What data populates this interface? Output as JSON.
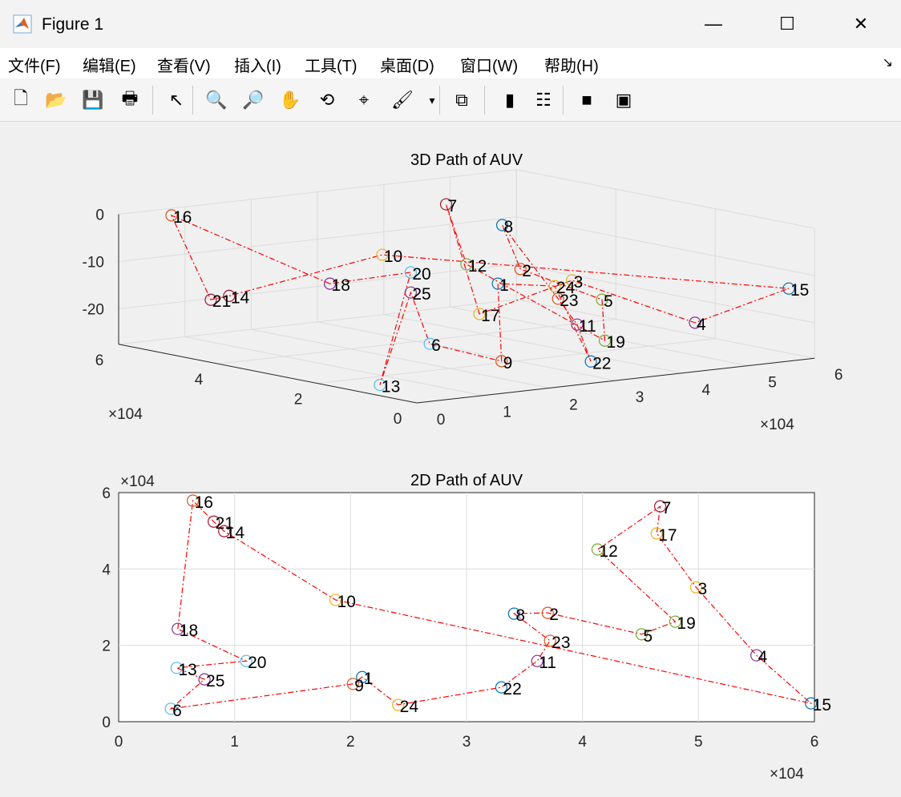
{
  "window": {
    "title": "Figure 1",
    "minimize": "—",
    "maximize": "☐",
    "close": "✕"
  },
  "menu": [
    "文件(F)",
    "编辑(E)",
    "查看(V)",
    "插入(I)",
    "工具(T)",
    "桌面(D)",
    "窗口(W)",
    "帮助(H)"
  ],
  "menu_arrow": "↘",
  "toolbar": [
    {
      "name": "new-figure-icon",
      "glyph": "🗋"
    },
    {
      "name": "open-file-icon",
      "glyph": "📂"
    },
    {
      "name": "save-icon",
      "glyph": "💾"
    },
    {
      "name": "print-icon",
      "glyph": "🖶"
    },
    {
      "name": "pointer-icon",
      "glyph": "↖"
    },
    {
      "name": "zoom-in-icon",
      "glyph": "🔍"
    },
    {
      "name": "zoom-out-icon",
      "glyph": "🔎"
    },
    {
      "name": "pan-icon",
      "glyph": "✋"
    },
    {
      "name": "rotate-3d-icon",
      "glyph": "⟲"
    },
    {
      "name": "data-cursor-icon",
      "glyph": "⌖"
    },
    {
      "name": "brush-icon",
      "glyph": "🖌"
    },
    {
      "name": "brush-dropdown-icon",
      "glyph": "▾"
    },
    {
      "name": "link-plot-icon",
      "glyph": "⧉"
    },
    {
      "name": "colorbar-icon",
      "glyph": "▮"
    },
    {
      "name": "legend-icon",
      "glyph": "☷"
    },
    {
      "name": "hide-plot-tools-icon",
      "glyph": "■"
    },
    {
      "name": "show-plot-tools-icon",
      "glyph": "▣"
    }
  ],
  "colors": {
    "line": "#ff0000",
    "cycle": [
      "#0072BD",
      "#D95319",
      "#EDB120",
      "#7E2F8E",
      "#77AC30",
      "#4DBEEE",
      "#A2142F"
    ]
  },
  "chart_data": [
    {
      "type": "line",
      "title": "3D Path of AUV",
      "projection": "3d",
      "xlim": [
        0,
        60000
      ],
      "ylim": [
        0,
        60000
      ],
      "zlim": [
        -27.5,
        0
      ],
      "xticks": [
        "0",
        "1",
        "2",
        "3",
        "4",
        "5",
        "6"
      ],
      "yticks": [
        "0",
        "2",
        "4",
        "6"
      ],
      "zticks": [
        "0",
        "-10",
        "-20"
      ],
      "x_exponent": "×10^4",
      "y_exponent": "×10^4",
      "grid": true,
      "points": [
        {
          "id": "1",
          "x": 21000,
          "y": 11700,
          "z": -8
        },
        {
          "id": "2",
          "x": 37000,
          "y": 28500,
          "z": -10.9
        },
        {
          "id": "3",
          "x": 49800,
          "y": 35200,
          "z": -16.7
        },
        {
          "id": "4",
          "x": 55000,
          "y": 17400,
          "z": -22.8
        },
        {
          "id": "5",
          "x": 45100,
          "y": 22900,
          "z": -17.5
        },
        {
          "id": "6",
          "x": 4500,
          "y": 3400,
          "z": -16.4
        },
        {
          "id": "7",
          "x": 46700,
          "y": 56400,
          "z": -4.5
        },
        {
          "id": "8",
          "x": 34100,
          "y": 28300,
          "z": -1.1
        },
        {
          "id": "9",
          "x": 20200,
          "y": 9900,
          "z": -23.9
        },
        {
          "id": "10",
          "x": 18700,
          "y": 31900,
          "z": -5.7
        },
        {
          "id": "11",
          "x": 36100,
          "y": 15900,
          "z": -19.9
        },
        {
          "id": "12",
          "x": 41300,
          "y": 45100,
          "z": -14
        },
        {
          "id": "13",
          "x": 5000,
          "y": 14100,
          "z": -27.4
        },
        {
          "id": "14",
          "x": 9100,
          "y": 49900,
          "z": -16.6
        },
        {
          "id": "15",
          "x": 59700,
          "y": 4800,
          "z": -13.7
        },
        {
          "id": "16",
          "x": 6400,
          "y": 57900,
          "z": -0.8
        },
        {
          "id": "17",
          "x": 46400,
          "y": 49300,
          "z": -26.2
        },
        {
          "id": "18",
          "x": 5100,
          "y": 24300,
          "z": -8.1
        },
        {
          "id": "19",
          "x": 48000,
          "y": 26200,
          "z": -27.3
        },
        {
          "id": "20",
          "x": 11000,
          "y": 15900,
          "z": -4.9
        },
        {
          "id": "21",
          "x": 8200,
          "y": 52400,
          "z": -17.8
        },
        {
          "id": "22",
          "x": 33000,
          "y": 9000,
          "z": -25.8
        },
        {
          "id": "23",
          "x": 37200,
          "y": 21200,
          "z": -15.7
        },
        {
          "id": "24",
          "x": 24100,
          "y": 4400,
          "z": -7.5
        },
        {
          "id": "25",
          "x": 7400,
          "y": 11100,
          "z": -7.6
        }
      ],
      "path_order": [
        "18",
        "16",
        "21",
        "14",
        "10",
        "15",
        "4",
        "3",
        "17",
        "7",
        "12",
        "19",
        "5",
        "2",
        "8",
        "23",
        "11",
        "22",
        "24",
        "1",
        "9",
        "6",
        "25",
        "13",
        "20",
        "18"
      ]
    },
    {
      "type": "line",
      "title": "2D Path of AUV",
      "xlim": [
        0,
        60000
      ],
      "ylim": [
        0,
        60000
      ],
      "xticks": [
        "0",
        "1",
        "2",
        "3",
        "4",
        "5",
        "6"
      ],
      "yticks": [
        "0",
        "2",
        "4",
        "6"
      ],
      "x_exponent": "×10^4",
      "y_exponent": "×10^4",
      "grid": true,
      "uses_points_of": "3D Path of AUV"
    }
  ]
}
